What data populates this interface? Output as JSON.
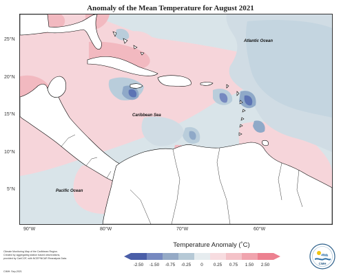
{
  "title": "Anomaly of the Mean Temperature for August 2021",
  "map": {
    "ocean_labels": [
      "Atlantic Ocean",
      "Caribbean Sea",
      "Pacific Ocean"
    ],
    "lat_ticks": [
      "25°N",
      "20°N",
      "15°N",
      "10°N",
      "5°N"
    ],
    "lon_ticks": [
      "90°W",
      "80°W",
      "70°W",
      "60°W"
    ],
    "colors": {
      "sea_neutral": "#d9e4e9",
      "land": "#ffffff",
      "coast": "#000000",
      "warm_light": "#f6d5da",
      "warm_mid": "#f2b9c0",
      "warm_strong": "#ee9aa5",
      "cool_light": "#b9cddb",
      "cool_mid": "#8fa9c8",
      "cool_strong": "#5d74b4"
    }
  },
  "legend": {
    "title": "Temperature Anomaly (˚C)",
    "labels": [
      "-2.50",
      "-1.50",
      "-0.75",
      "-0.25",
      "0",
      "0.25",
      "0.75",
      "1.50",
      "2.50"
    ],
    "colors": [
      "#4a5ea8",
      "#7689c0",
      "#95aac6",
      "#b6c9d6",
      "#d9e4e9",
      "#f7dce0",
      "#f4c2c8",
      "#f0a4ae",
      "#ec8190"
    ]
  },
  "credits": {
    "line1": "Climate Monitoring Map of the Caribbean Region.",
    "line2": "Created by aggregating station based observations,",
    "line3": "provided by CariCOF, with NCEP/NCAR Reanalysis Data.",
    "stamp": "CIMH: Sep-2021"
  },
  "logo": {
    "text": "CIMH"
  }
}
